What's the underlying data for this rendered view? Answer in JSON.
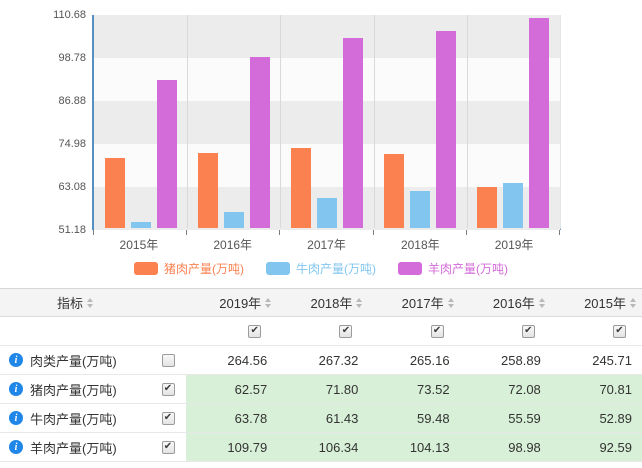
{
  "colors": {
    "pork_orange": "#fb8150",
    "beef_blue": "#82c6ef",
    "mutton_magenta": "#d36bd9",
    "axis_blue": "#5590c4",
    "highlight_green": "#d7f0d7",
    "info_blue": "#2086e8",
    "band_gray": "#ececec",
    "band_light": "#fbfbfb"
  },
  "icons": {
    "info_glyph": "i",
    "check_glyph": "✔"
  },
  "chart_data": {
    "type": "bar",
    "categories": [
      "2015年",
      "2016年",
      "2017年",
      "2018年",
      "2019年"
    ],
    "series": [
      {
        "name": "猪肉产量(万吨)",
        "color": "#fb8150",
        "values": [
          70.81,
          72.08,
          73.52,
          71.8,
          62.57
        ]
      },
      {
        "name": "牛肉产量(万吨)",
        "color": "#82c6ef",
        "values": [
          52.89,
          55.59,
          59.48,
          61.43,
          63.78
        ]
      },
      {
        "name": "羊肉产量(万吨)",
        "color": "#d36bd9",
        "values": [
          92.59,
          98.98,
          104.13,
          106.34,
          109.79
        ]
      }
    ],
    "title": "",
    "xlabel": "",
    "ylabel": "",
    "ylim": [
      51.18,
      110.68
    ],
    "yticks": [
      "110.68",
      "98.78",
      "86.88",
      "74.98",
      "63.08",
      "51.18"
    ],
    "grid": true,
    "legend_position": "bottom"
  },
  "table": {
    "indicator_header": "指标",
    "year_columns": [
      "2019年",
      "2018年",
      "2017年",
      "2016年",
      "2015年"
    ],
    "filter_checkboxes": [
      true,
      true,
      true,
      true,
      true
    ],
    "rows": [
      {
        "label": "肉类产量(万吨)",
        "checked": false,
        "highlight": false,
        "values": [
          "264.56",
          "267.32",
          "265.16",
          "258.89",
          "245.71"
        ]
      },
      {
        "label": "猪肉产量(万吨)",
        "checked": true,
        "highlight": true,
        "values": [
          "62.57",
          "71.80",
          "73.52",
          "72.08",
          "70.81"
        ]
      },
      {
        "label": "牛肉产量(万吨)",
        "checked": true,
        "highlight": true,
        "values": [
          "63.78",
          "61.43",
          "59.48",
          "55.59",
          "52.89"
        ]
      },
      {
        "label": "羊肉产量(万吨)",
        "checked": true,
        "highlight": true,
        "values": [
          "109.79",
          "106.34",
          "104.13",
          "98.98",
          "92.59"
        ]
      }
    ]
  }
}
